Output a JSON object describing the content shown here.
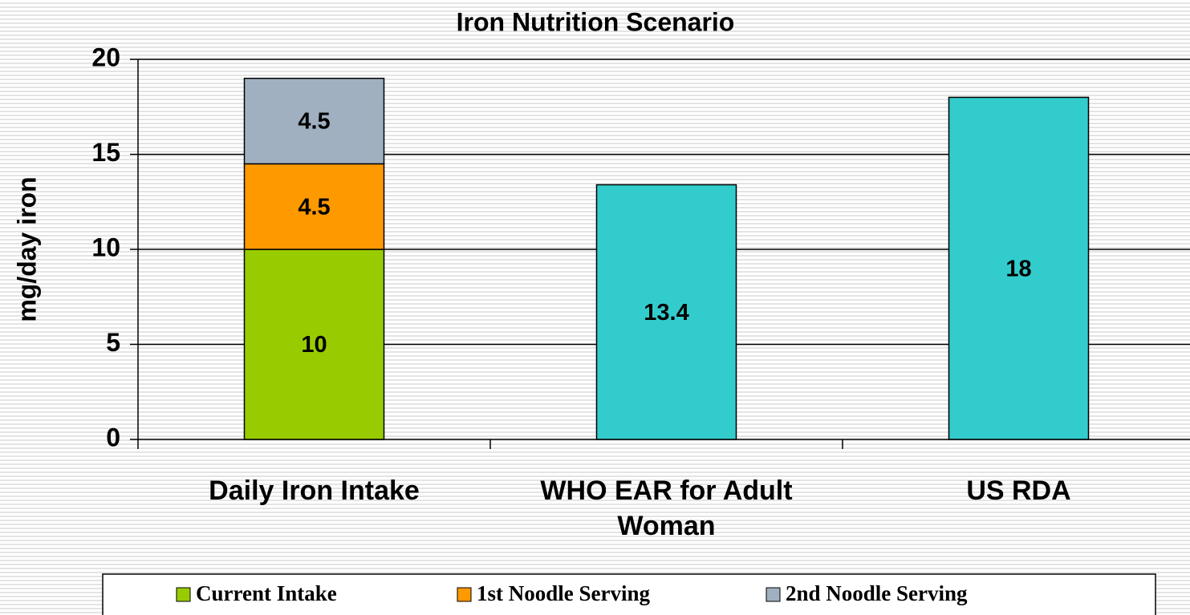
{
  "chart_data": {
    "type": "stacked_bar",
    "title": "Iron Nutrition Scenario",
    "y_label": "mg/day iron",
    "categories": [
      "Daily Iron Intake",
      "WHO EAR for Adult Woman",
      "US RDA"
    ],
    "series": [
      {
        "name": "Current Intake",
        "color": "#99cc00",
        "values": [
          10,
          null,
          null
        ]
      },
      {
        "name": "1st Noodle Serving",
        "color": "#ff9900",
        "values": [
          4.5,
          null,
          null
        ]
      },
      {
        "name": "2nd Noodle Serving",
        "color": "#a0b0c0",
        "values": [
          4.5,
          null,
          null
        ]
      },
      {
        "color": "#33cccc",
        "values": [
          null,
          13.4,
          18
        ]
      }
    ],
    "ylim": [
      0,
      20
    ],
    "yticks": [
      0,
      5,
      10,
      15,
      20
    ],
    "grid": true,
    "legend": "bottom"
  }
}
